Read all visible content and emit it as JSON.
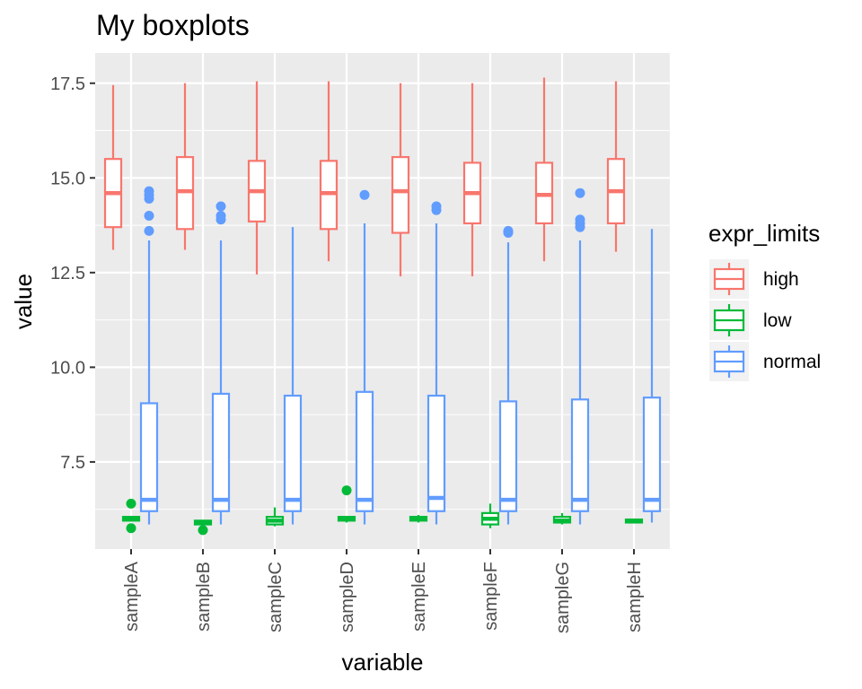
{
  "chart_data": {
    "type": "boxplot",
    "title": "My boxplots",
    "xlabel": "variable",
    "ylabel": "value",
    "ylim": [
      5.2,
      18.3
    ],
    "yticks": [
      7.5,
      10.0,
      12.5,
      15.0,
      17.5
    ],
    "ytick_labels": [
      "7.5",
      "10.0",
      "12.5",
      "15.0",
      "17.5"
    ],
    "grid": true,
    "legend_position": "right",
    "legend_title": "expr_limits",
    "categories": [
      "sampleA",
      "sampleB",
      "sampleC",
      "sampleD",
      "sampleE",
      "sampleF",
      "sampleG",
      "sampleH"
    ],
    "series": [
      {
        "name": "high",
        "color": "#F8766D",
        "boxes": [
          {
            "whislo": 13.1,
            "q1": 13.7,
            "med": 14.6,
            "q3": 15.5,
            "whishi": 17.45,
            "outliers": []
          },
          {
            "whislo": 13.1,
            "q1": 13.65,
            "med": 14.65,
            "q3": 15.55,
            "whishi": 17.5,
            "outliers": []
          },
          {
            "whislo": 12.45,
            "q1": 13.85,
            "med": 14.65,
            "q3": 15.45,
            "whishi": 17.55,
            "outliers": []
          },
          {
            "whislo": 12.8,
            "q1": 13.65,
            "med": 14.6,
            "q3": 15.45,
            "whishi": 17.55,
            "outliers": []
          },
          {
            "whislo": 12.4,
            "q1": 13.55,
            "med": 14.65,
            "q3": 15.55,
            "whishi": 17.5,
            "outliers": []
          },
          {
            "whislo": 12.4,
            "q1": 13.8,
            "med": 14.6,
            "q3": 15.4,
            "whishi": 17.5,
            "outliers": []
          },
          {
            "whislo": 12.8,
            "q1": 13.8,
            "med": 14.55,
            "q3": 15.4,
            "whishi": 17.65,
            "outliers": []
          },
          {
            "whislo": 13.05,
            "q1": 13.8,
            "med": 14.65,
            "q3": 15.5,
            "whishi": 17.55,
            "outliers": []
          }
        ]
      },
      {
        "name": "low",
        "color": "#00BA38",
        "boxes": [
          {
            "whislo": 5.95,
            "q1": 5.95,
            "med": 6.0,
            "q3": 6.05,
            "whishi": 6.05,
            "outliers": [
              6.4,
              5.75
            ]
          },
          {
            "whislo": 5.85,
            "q1": 5.85,
            "med": 5.9,
            "q3": 5.95,
            "whishi": 5.95,
            "outliers": [
              5.7
            ]
          },
          {
            "whislo": 5.8,
            "q1": 5.85,
            "med": 5.95,
            "q3": 6.05,
            "whishi": 6.3,
            "outliers": []
          },
          {
            "whislo": 5.9,
            "q1": 5.95,
            "med": 6.0,
            "q3": 6.05,
            "whishi": 6.05,
            "outliers": [
              6.75
            ]
          },
          {
            "whislo": 5.9,
            "q1": 5.95,
            "med": 6.0,
            "q3": 6.05,
            "whishi": 6.1,
            "outliers": []
          },
          {
            "whislo": 5.75,
            "q1": 5.85,
            "med": 6.0,
            "q3": 6.15,
            "whishi": 6.4,
            "outliers": []
          },
          {
            "whislo": 5.85,
            "q1": 5.9,
            "med": 5.95,
            "q3": 6.05,
            "whishi": 6.15,
            "outliers": []
          },
          {
            "whislo": 5.9,
            "q1": 5.9,
            "med": 5.95,
            "q3": 5.98,
            "whishi": 6.0,
            "outliers": []
          }
        ]
      },
      {
        "name": "normal",
        "color": "#619CFF",
        "boxes": [
          {
            "whislo": 5.85,
            "q1": 6.2,
            "med": 6.5,
            "q3": 9.05,
            "whishi": 13.35,
            "outliers": [
              13.6,
              14.0,
              14.45,
              14.55,
              14.65
            ]
          },
          {
            "whislo": 5.85,
            "q1": 6.2,
            "med": 6.5,
            "q3": 9.3,
            "whishi": 13.35,
            "outliers": [
              13.9,
              14.0,
              14.25
            ]
          },
          {
            "whislo": 5.85,
            "q1": 6.2,
            "med": 6.5,
            "q3": 9.25,
            "whishi": 13.7,
            "outliers": []
          },
          {
            "whislo": 5.85,
            "q1": 6.2,
            "med": 6.5,
            "q3": 9.35,
            "whishi": 13.8,
            "outliers": [
              14.55
            ]
          },
          {
            "whislo": 5.85,
            "q1": 6.2,
            "med": 6.55,
            "q3": 9.25,
            "whishi": 13.8,
            "outliers": [
              14.15,
              14.25
            ]
          },
          {
            "whislo": 5.85,
            "q1": 6.2,
            "med": 6.5,
            "q3": 9.1,
            "whishi": 13.3,
            "outliers": [
              13.55,
              13.6
            ]
          },
          {
            "whislo": 5.85,
            "q1": 6.2,
            "med": 6.5,
            "q3": 9.15,
            "whishi": 13.35,
            "outliers": [
              13.7,
              13.8,
              13.9,
              14.6
            ]
          },
          {
            "whislo": 5.9,
            "q1": 6.2,
            "med": 6.5,
            "q3": 9.2,
            "whishi": 13.65,
            "outliers": []
          }
        ]
      }
    ]
  }
}
